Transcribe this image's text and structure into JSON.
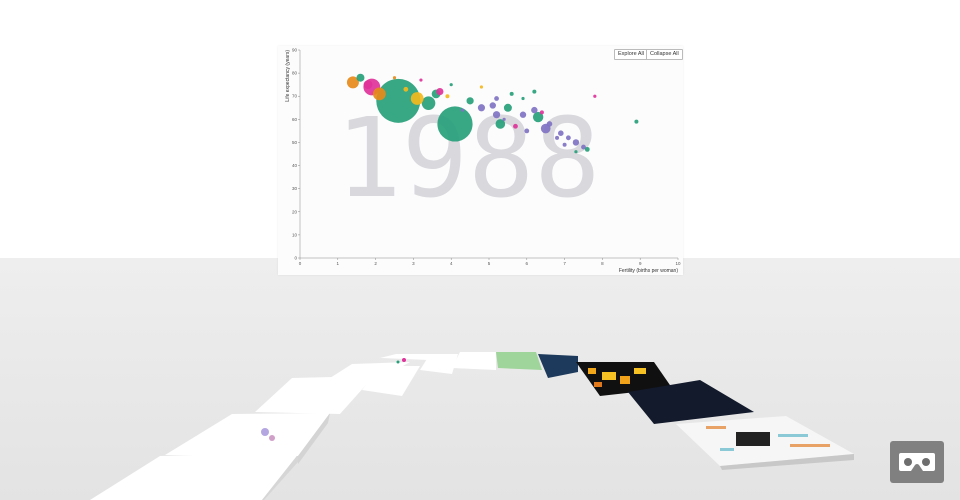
{
  "buttons": {
    "expand_all": "Explore All",
    "collapse_all": "Collapse All"
  },
  "vr_button": {
    "icon": "vr-goggles-icon"
  },
  "chart_data": {
    "type": "scatter",
    "year_label": "1988",
    "xlabel": "Fertility (births per woman)",
    "ylabel": "Life expectancy (years)",
    "xlim": [
      0,
      10
    ],
    "ylim": [
      0,
      90
    ],
    "x_ticks": [
      "0",
      "1",
      "2",
      "3",
      "4",
      "5",
      "6",
      "7",
      "8",
      "9",
      "10"
    ],
    "y_ticks": [
      "0",
      "10",
      "20",
      "30",
      "40",
      "50",
      "60",
      "70",
      "80",
      "90"
    ],
    "grid": false,
    "colors": {
      "teal": "#27a07a",
      "purple": "#8073c3",
      "orange": "#e68a1a",
      "pink": "#e0339a",
      "yellow": "#f3b81d",
      "year_watermark": "#d9d8dc"
    },
    "points": [
      {
        "x": 2.6,
        "y": 68,
        "size": 5.5,
        "color": "teal"
      },
      {
        "x": 4.1,
        "y": 58,
        "size": 4.4,
        "color": "teal"
      },
      {
        "x": 1.9,
        "y": 74,
        "size": 2.1,
        "color": "pink"
      },
      {
        "x": 1.4,
        "y": 76,
        "size": 1.5,
        "color": "orange"
      },
      {
        "x": 2.1,
        "y": 71,
        "size": 1.6,
        "color": "orange"
      },
      {
        "x": 3.1,
        "y": 69,
        "size": 1.6,
        "color": "yellow"
      },
      {
        "x": 3.4,
        "y": 67,
        "size": 1.7,
        "color": "teal"
      },
      {
        "x": 3.6,
        "y": 71,
        "size": 1.1,
        "color": "teal"
      },
      {
        "x": 3.7,
        "y": 72,
        "size": 0.9,
        "color": "pink"
      },
      {
        "x": 1.6,
        "y": 78,
        "size": 1.0,
        "color": "teal"
      },
      {
        "x": 1.8,
        "y": 75,
        "size": 1.1,
        "color": "pink"
      },
      {
        "x": 4.5,
        "y": 68,
        "size": 0.9,
        "color": "teal"
      },
      {
        "x": 4.8,
        "y": 65,
        "size": 0.9,
        "color": "purple"
      },
      {
        "x": 5.1,
        "y": 66,
        "size": 0.8,
        "color": "purple"
      },
      {
        "x": 5.2,
        "y": 69,
        "size": 0.6,
        "color": "purple"
      },
      {
        "x": 5.5,
        "y": 65,
        "size": 1.0,
        "color": "teal"
      },
      {
        "x": 5.2,
        "y": 62,
        "size": 0.9,
        "color": "purple"
      },
      {
        "x": 5.3,
        "y": 58,
        "size": 1.2,
        "color": "teal"
      },
      {
        "x": 5.9,
        "y": 62,
        "size": 0.8,
        "color": "purple"
      },
      {
        "x": 6.2,
        "y": 64,
        "size": 0.8,
        "color": "purple"
      },
      {
        "x": 6.3,
        "y": 61,
        "size": 1.3,
        "color": "teal"
      },
      {
        "x": 6.5,
        "y": 56,
        "size": 1.2,
        "color": "purple"
      },
      {
        "x": 6.6,
        "y": 58,
        "size": 0.7,
        "color": "purple"
      },
      {
        "x": 6.9,
        "y": 54,
        "size": 0.7,
        "color": "purple"
      },
      {
        "x": 7.1,
        "y": 52,
        "size": 0.6,
        "color": "purple"
      },
      {
        "x": 7.3,
        "y": 50,
        "size": 0.8,
        "color": "purple"
      },
      {
        "x": 7.5,
        "y": 48,
        "size": 0.6,
        "color": "purple"
      },
      {
        "x": 7.6,
        "y": 47,
        "size": 0.6,
        "color": "teal"
      },
      {
        "x": 6.0,
        "y": 55,
        "size": 0.6,
        "color": "purple"
      },
      {
        "x": 6.8,
        "y": 52,
        "size": 0.5,
        "color": "purple"
      },
      {
        "x": 7.0,
        "y": 49,
        "size": 0.5,
        "color": "purple"
      },
      {
        "x": 8.9,
        "y": 59,
        "size": 0.5,
        "color": "teal"
      },
      {
        "x": 7.8,
        "y": 70,
        "size": 0.4,
        "color": "pink"
      },
      {
        "x": 5.7,
        "y": 57,
        "size": 0.6,
        "color": "pink"
      },
      {
        "x": 6.4,
        "y": 63,
        "size": 0.5,
        "color": "pink"
      },
      {
        "x": 2.8,
        "y": 73,
        "size": 0.6,
        "color": "yellow"
      },
      {
        "x": 3.9,
        "y": 70,
        "size": 0.5,
        "color": "yellow"
      },
      {
        "x": 4.8,
        "y": 74,
        "size": 0.4,
        "color": "yellow"
      },
      {
        "x": 4.0,
        "y": 75,
        "size": 0.4,
        "color": "teal"
      },
      {
        "x": 3.2,
        "y": 77,
        "size": 0.4,
        "color": "pink"
      },
      {
        "x": 6.2,
        "y": 72,
        "size": 0.5,
        "color": "teal"
      },
      {
        "x": 5.6,
        "y": 71,
        "size": 0.5,
        "color": "teal"
      },
      {
        "x": 2.5,
        "y": 78,
        "size": 0.4,
        "color": "orange"
      },
      {
        "x": 5.9,
        "y": 69,
        "size": 0.4,
        "color": "teal"
      },
      {
        "x": 7.3,
        "y": 46,
        "size": 0.4,
        "color": "teal"
      },
      {
        "x": 5.4,
        "y": 60,
        "size": 0.4,
        "color": "purple"
      },
      {
        "x": 4.3,
        "y": 64,
        "size": 0.4,
        "color": "purple"
      }
    ]
  }
}
